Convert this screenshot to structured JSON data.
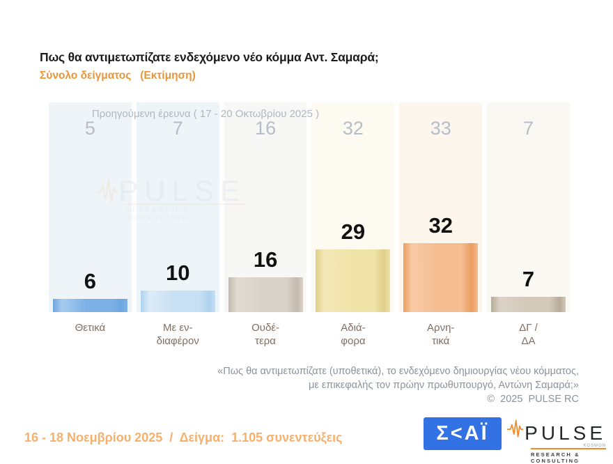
{
  "title": "Πως θα αντιμετωπίζατε ενδεχόμενο νέο κόμμα Αντ. Σαμαρά;",
  "subtitle": "Σύνολο δείγματος   (Εκτίμηση)",
  "previous_note": "Προηγούμενη έρευνα ( 17 - 20 Οκτωβρίου 2025 )",
  "chart_data": {
    "type": "bar",
    "title": "Πως θα αντιμετωπίζατε ενδεχόμενο νέο κόμμα Αντ. Σαμαρά;",
    "subtitle": "Σύνολο δείγματος (Εκτίμηση)",
    "categories": [
      "Θετικά",
      "Με ενδιαφέρον",
      "Ουδέτερα",
      "Αδιάφορα",
      "Αρνητικά",
      "ΔΓ / ΔΑ"
    ],
    "series": [
      {
        "name": "Εκτίμηση (16 - 18 Νοεμβρίου 2025)",
        "values": [
          6,
          10,
          16,
          29,
          32,
          7
        ]
      },
      {
        "name": "Προηγούμενη έρευνα ( 17 - 20 Οκτωβρίου 2025 )",
        "values": [
          5,
          7,
          16,
          32,
          33,
          7
        ]
      }
    ],
    "axis": "hidden",
    "grid": false,
    "legend_position": "none",
    "data_labels": "above bars (current), faded at top (previous)"
  },
  "style": {
    "label_lines": [
      [
        "Θετικά"
      ],
      [
        "Με εν-",
        "διαφέρον"
      ],
      [
        "Ουδέ-",
        "τερα"
      ],
      [
        "Αδιά-",
        "φορα"
      ],
      [
        "Αρνη-",
        "τικά"
      ],
      [
        "ΔΓ /",
        "ΔΑ"
      ]
    ],
    "column_tints": [
      "#eff4f8",
      "#edf5f8",
      "#f7f7f6",
      "#fdfaf1",
      "#fdf6ec",
      "#faf8f3"
    ],
    "bar_colors": [
      {
        "light": "#a6cbee",
        "mid": "#7db1e5",
        "edge": "#6da7e0"
      },
      {
        "light": "#dcebf8",
        "mid": "#c8e0f4",
        "edge": "#aed2ef"
      },
      {
        "light": "#e0dad1",
        "mid": "#d8d2c8",
        "edge": "#c3bbae"
      },
      {
        "light": "#f3e9b8",
        "mid": "#efe3a8",
        "edge": "#e0cf8a"
      },
      {
        "light": "#f8caa5",
        "mid": "#f5bd92",
        "edge": "#ea9e60"
      },
      {
        "light": "#dbd3c6",
        "mid": "#d3caba",
        "edge": "#b7ab99"
      }
    ],
    "accent_orange": "#e8953c",
    "footer_orange": "#f6b06e",
    "skai_blue": "#3272e4",
    "pulse_orange": "#ef8a2d"
  },
  "watermark": {
    "brand": "PULSE",
    "tagline": "RESEARCH & CONSULTING"
  },
  "footnote": {
    "lines": [
      "«Πως θα αντιμετωπίζατε (υποθετικά), το ενδεχόμενο δημιουργίας νέου κόμματος,",
      "με επικεφαλής τον πρώην πρωθυπουργό, Αντώνη Σαμαρά;»",
      "©  2025  PULSE RC"
    ]
  },
  "footer": {
    "fieldwork": "16 - 18 Νοεμβρίου 2025  /  Δείγμα:  1.105 συνεντεύξεις",
    "skai_logo_text": "Σ<ΑΪ",
    "pulse_logo": {
      "brand": "PULSE",
      "small_mark": "KOSMON",
      "tagline": "RESEARCH & CONSULTING"
    }
  }
}
